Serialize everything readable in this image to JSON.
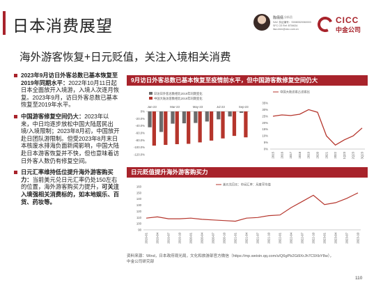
{
  "header": {
    "title": "日本消费展望",
    "analyst": {
      "name": "陈倩倩",
      "role": "分析员",
      "lines": [
        "SAC 执证编号：S0080520060003",
        "SFC CE Ref: BTM634",
        "lisa.chen@cicc.com.cn"
      ]
    },
    "logo_en": "CICC",
    "logo_cn": "中金公司"
  },
  "subtitle": "海外游客恢复+日元贬值，关注入境相关消费",
  "bullets": [
    {
      "head": "2023年9月访日外客总数已基本恢复至2019年同期水平：",
      "body": "2022年10月11日起日本全面放开入境游，入境人次逐月恢复。2023年9月，访日外客总数已基本恢复至2019年水平。"
    },
    {
      "head": "中国游客修复空间仍大：",
      "body": "2023年以来，中日均逐步放松中国大陆居民出境/入境限制；2023年8月初，中国放开赴日团队游限制。但受2023年8月末日本核废水排海负面新闻影响，中国大陆赴日本游客恢复并不快，但也意味着访日外客人数仍有修复空间。"
    },
    {
      "head": "日元汇率维持低位提升海外游客购买力：",
      "body": "当前美元兑日元汇率仍处150左右的位置，海外游客购买力提升，",
      "tail": "可关注入境强相关消费标的，如本地娱乐、百货、药妆等。"
    }
  ],
  "panel1": {
    "title": "9月访日外客总数已基本恢复至疫情前水平，但中国游客数修复空间仍大"
  },
  "panel2": {
    "title": "日元贬值提升海外游客购买力"
  },
  "chart_data": [
    {
      "type": "bar",
      "legend": [
        "日访日外客总数相比2019年同期变化",
        "中国大陆访客数相比2019年同期变化"
      ],
      "categories": [
        "Jan-23",
        "Feb-23",
        "Mar-23",
        "Apr-23",
        "May-23",
        "Jun-23",
        "Jul-23",
        "Aug-23",
        "Sep-23"
      ],
      "series": [
        {
          "name": "日访日外客总数相比2019年同期变化",
          "values": [
            -44,
            -57,
            -34,
            -33,
            -32,
            -28,
            -22,
            -14,
            -4
          ]
        },
        {
          "name": "中国大陆访客数相比2019年同期变化",
          "values": [
            -95,
            -93,
            -91,
            -90,
            -86,
            -81,
            -75,
            -68,
            -72
          ]
        }
      ],
      "ylim": [
        -100,
        0
      ],
      "yticks": [
        "0%",
        "-20.0%",
        "-40.0%",
        "-60.0%",
        "-80.0%",
        "-100.0%",
        "-120.0%"
      ]
    },
    {
      "type": "line",
      "legend": [
        "中国大陆访客占访客比"
      ],
      "x": [
        "2015",
        "2016",
        "2017",
        "2018",
        "2019",
        "2020",
        "2021",
        "2022",
        "1Q23",
        "2Q23",
        "3Q23"
      ],
      "values": [
        25,
        26,
        25.5,
        26.5,
        30,
        28,
        10,
        3,
        7,
        10,
        16
      ],
      "ylim": [
        0,
        35
      ],
      "yticks": [
        "35%",
        "30%",
        "25%",
        "20%",
        "15%",
        "10%",
        "5%",
        "0%"
      ]
    },
    {
      "type": "line",
      "legend": [
        "美元兑日元：中间汇率：月度平均值"
      ],
      "x": [
        "2019-01",
        "2019-04",
        "2019-07",
        "2019-10",
        "2020-01",
        "2020-04",
        "2020-07",
        "2020-10",
        "2021-01",
        "2021-04",
        "2021-07",
        "2021-10",
        "2022-01",
        "2022-04",
        "2022-07",
        "2022-10",
        "2023-01",
        "2023-04",
        "2023-07",
        "2023-10"
      ],
      "values": [
        109,
        111,
        108,
        108,
        109,
        107,
        106,
        105,
        104,
        109,
        110,
        113,
        114,
        126,
        136,
        146,
        131,
        134,
        141,
        150
      ],
      "ylim": [
        90,
        160
      ],
      "yticks": [
        "160",
        "150",
        "140",
        "130",
        "120",
        "110",
        "100",
        "90"
      ]
    }
  ],
  "source": {
    "line1": "资料来源：Wind，日本政府观光局，文化和旅游部官方微信（https://mp.weixin.qq.com/s/Q6gPb2Gi9XrJh7C9XbY8w），",
    "line2": "中金公司研究部"
  },
  "page_number": "110"
}
